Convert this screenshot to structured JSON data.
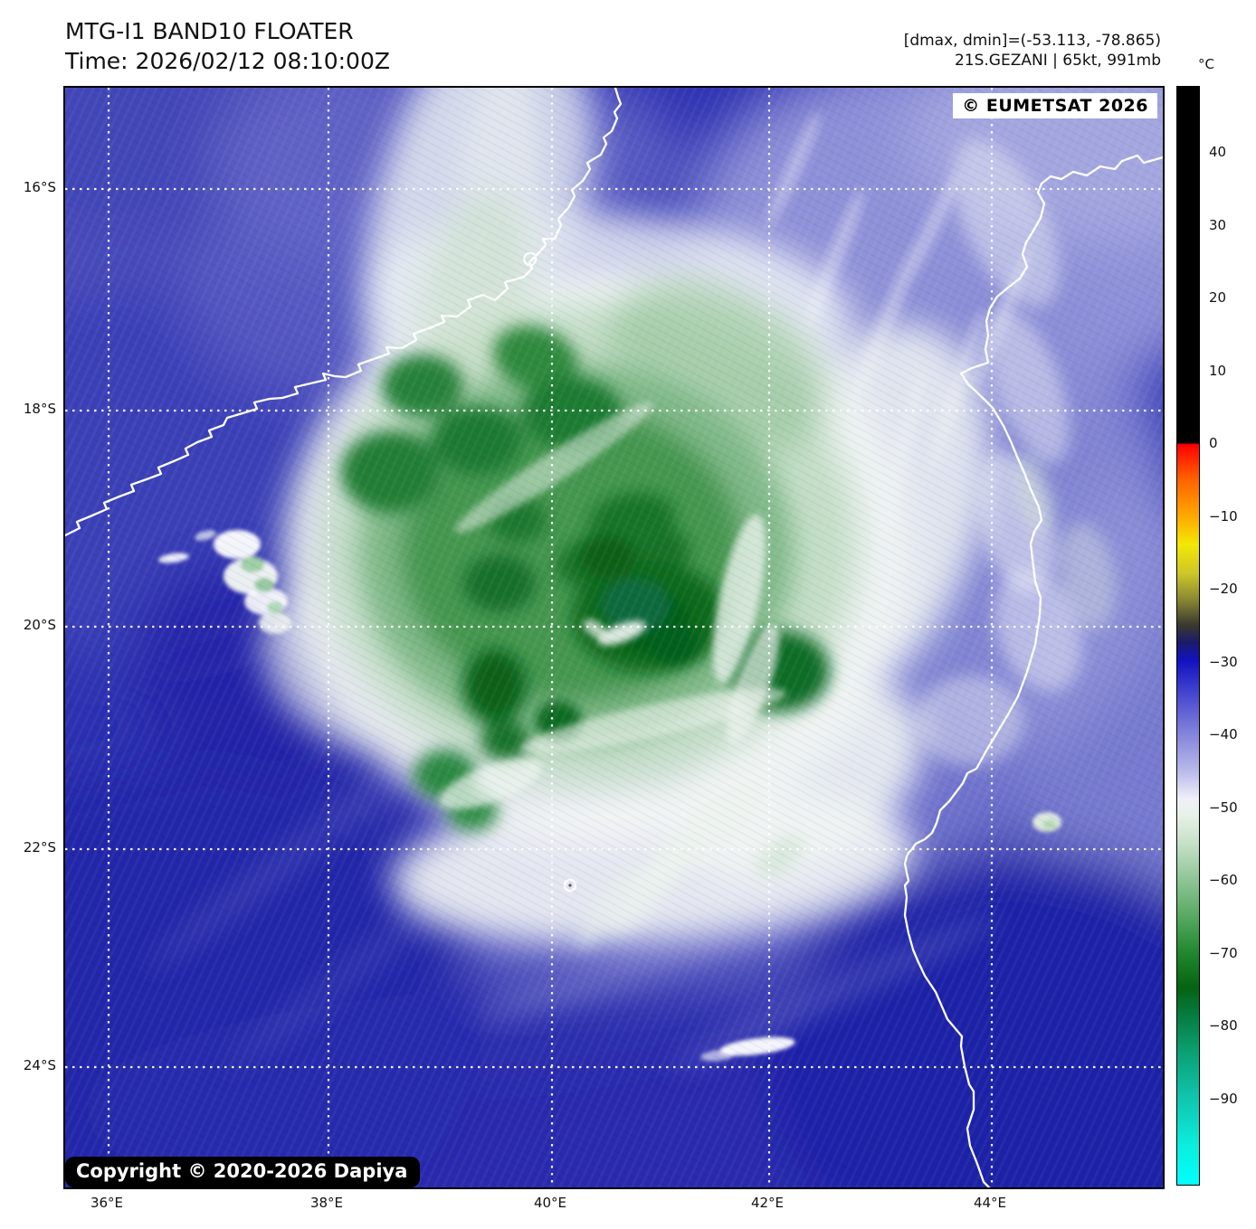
{
  "header": {
    "title": "MTG-I1 BAND10 FLOATER",
    "time": "Time: 2026/02/12 08:10:00Z",
    "dminmax": "[dmax, dmin]=(-53.113, -78.865)",
    "storm": "21S.GEZANI | 65kt, 991mb"
  },
  "map": {
    "eumetsat_badge": "© EUMETSAT 2026",
    "copyright_badge": "Copyright © 2020-2026 Dapiya",
    "y_axis_labels": [
      "16°S",
      "18°S",
      "20°S",
      "22°S",
      "24°S"
    ],
    "x_axis_labels": [
      "36°E",
      "38°E",
      "40°E",
      "42°E",
      "44°E"
    ]
  },
  "colorbar": {
    "unit": "°C",
    "ticks": [
      {
        "label": "40",
        "value": 40
      },
      {
        "label": "30",
        "value": 30
      },
      {
        "label": "20",
        "value": 20
      },
      {
        "label": "10",
        "value": 10
      },
      {
        "label": "0",
        "value": 0
      },
      {
        "label": "−10",
        "value": -10
      },
      {
        "label": "−20",
        "value": -20
      },
      {
        "label": "−30",
        "value": -30
      },
      {
        "label": "−40",
        "value": -40
      },
      {
        "label": "−50",
        "value": -50
      },
      {
        "label": "−60",
        "value": -60
      },
      {
        "label": "−70",
        "value": -70
      },
      {
        "label": "−80",
        "value": -80
      },
      {
        "label": "−90",
        "value": -90
      }
    ]
  },
  "colors": {
    "ocean_blue": "#2e32b2",
    "deep_blue": "#1f22a7",
    "lavender": "#9496da",
    "cloud_white": "#eef2f0",
    "cold_green": "#45974f",
    "coldest_green": "#065e16",
    "coastline": "#ffffff"
  }
}
